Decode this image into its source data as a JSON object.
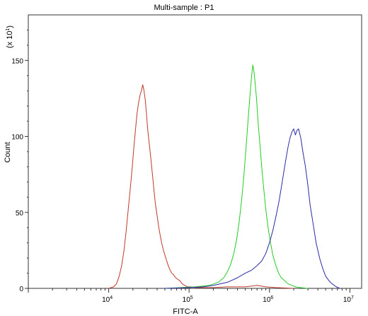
{
  "chart_data": {
    "type": "line",
    "title": "Multi-sample : P1",
    "xlabel": "FITC-A",
    "ylabel": "Count",
    "y_multiplier_label": "(x 10",
    "y_multiplier_exp": "1",
    "y_multiplier_close": ")",
    "x_scale": "log",
    "xlim": [
      1000,
      14000000
    ],
    "ylim": [
      0,
      180
    ],
    "x_ticks": [
      {
        "value": 10000,
        "base": "10",
        "exp": "4"
      },
      {
        "value": 100000,
        "base": "10",
        "exp": "5"
      },
      {
        "value": 1000000,
        "base": "10",
        "exp": "6"
      },
      {
        "value": 10000000,
        "base": "10",
        "exp": "7"
      }
    ],
    "y_ticks": [
      0,
      50,
      100,
      150
    ],
    "grid": false,
    "series": [
      {
        "color": "#c0392b",
        "points": [
          [
            10000,
            0
          ],
          [
            11500,
            1
          ],
          [
            12500,
            3
          ],
          [
            13500,
            8
          ],
          [
            14500,
            15
          ],
          [
            15500,
            25
          ],
          [
            16500,
            38
          ],
          [
            17500,
            52
          ],
          [
            18500,
            65
          ],
          [
            19500,
            78
          ],
          [
            20500,
            92
          ],
          [
            21500,
            104
          ],
          [
            22500,
            115
          ],
          [
            23500,
            122
          ],
          [
            24500,
            127
          ],
          [
            25500,
            130
          ],
          [
            26500,
            134
          ],
          [
            27500,
            130
          ],
          [
            28500,
            124
          ],
          [
            29500,
            115
          ],
          [
            30500,
            105
          ],
          [
            32000,
            95
          ],
          [
            33500,
            85
          ],
          [
            35000,
            75
          ],
          [
            36500,
            65
          ],
          [
            38000,
            56
          ],
          [
            40000,
            48
          ],
          [
            42000,
            40
          ],
          [
            44000,
            34
          ],
          [
            46000,
            29
          ],
          [
            48000,
            25
          ],
          [
            50000,
            22
          ],
          [
            52000,
            19
          ],
          [
            55000,
            15
          ],
          [
            58000,
            12
          ],
          [
            61000,
            10
          ],
          [
            64000,
            9
          ],
          [
            68000,
            7
          ],
          [
            72000,
            6
          ],
          [
            77000,
            5
          ],
          [
            82000,
            3
          ],
          [
            88000,
            2
          ],
          [
            95000,
            1
          ],
          [
            105000,
            1
          ],
          [
            120000,
            0.5
          ],
          [
            150000,
            0.5
          ],
          [
            200000,
            0.5
          ],
          [
            300000,
            1
          ],
          [
            400000,
            1
          ],
          [
            500000,
            1
          ],
          [
            700000,
            2
          ],
          [
            900000,
            1
          ],
          [
            1200000,
            0.5
          ],
          [
            2000000,
            0
          ]
        ]
      },
      {
        "color": "#22cc22",
        "points": [
          [
            50000,
            0
          ],
          [
            80000,
            0.5
          ],
          [
            120000,
            1
          ],
          [
            180000,
            2
          ],
          [
            230000,
            4
          ],
          [
            270000,
            7
          ],
          [
            300000,
            11
          ],
          [
            330000,
            16
          ],
          [
            360000,
            23
          ],
          [
            390000,
            32
          ],
          [
            420000,
            44
          ],
          [
            450000,
            58
          ],
          [
            480000,
            74
          ],
          [
            510000,
            92
          ],
          [
            540000,
            110
          ],
          [
            570000,
            126
          ],
          [
            600000,
            140
          ],
          [
            620000,
            147
          ],
          [
            640000,
            143
          ],
          [
            660000,
            136
          ],
          [
            690000,
            125
          ],
          [
            720000,
            110
          ],
          [
            760000,
            95
          ],
          [
            800000,
            80
          ],
          [
            850000,
            65
          ],
          [
            900000,
            52
          ],
          [
            960000,
            40
          ],
          [
            1030000,
            30
          ],
          [
            1100000,
            22
          ],
          [
            1200000,
            15
          ],
          [
            1300000,
            10
          ],
          [
            1400000,
            7
          ],
          [
            1550000,
            5
          ],
          [
            1700000,
            3
          ],
          [
            1900000,
            2
          ],
          [
            2100000,
            1
          ],
          [
            2400000,
            0.5
          ],
          [
            3000000,
            0
          ]
        ]
      },
      {
        "color": "#2a2aa8",
        "points": [
          [
            50000,
            0
          ],
          [
            100000,
            0.5
          ],
          [
            150000,
            1
          ],
          [
            200000,
            2
          ],
          [
            300000,
            4
          ],
          [
            400000,
            7
          ],
          [
            500000,
            10
          ],
          [
            600000,
            12
          ],
          [
            700000,
            15
          ],
          [
            800000,
            18
          ],
          [
            900000,
            23
          ],
          [
            1000000,
            30
          ],
          [
            1100000,
            38
          ],
          [
            1200000,
            47
          ],
          [
            1300000,
            56
          ],
          [
            1400000,
            66
          ],
          [
            1500000,
            76
          ],
          [
            1600000,
            85
          ],
          [
            1700000,
            93
          ],
          [
            1800000,
            99
          ],
          [
            1900000,
            103
          ],
          [
            2000000,
            105
          ],
          [
            2100000,
            101
          ],
          [
            2200000,
            104
          ],
          [
            2300000,
            105
          ],
          [
            2450000,
            99
          ],
          [
            2600000,
            90
          ],
          [
            2800000,
            80
          ],
          [
            3000000,
            68
          ],
          [
            3200000,
            55
          ],
          [
            3500000,
            42
          ],
          [
            3800000,
            30
          ],
          [
            4200000,
            20
          ],
          [
            4600000,
            13
          ],
          [
            5000000,
            8
          ],
          [
            5500000,
            5
          ],
          [
            6000000,
            3
          ],
          [
            6800000,
            1
          ],
          [
            7500000,
            0
          ]
        ]
      }
    ]
  }
}
